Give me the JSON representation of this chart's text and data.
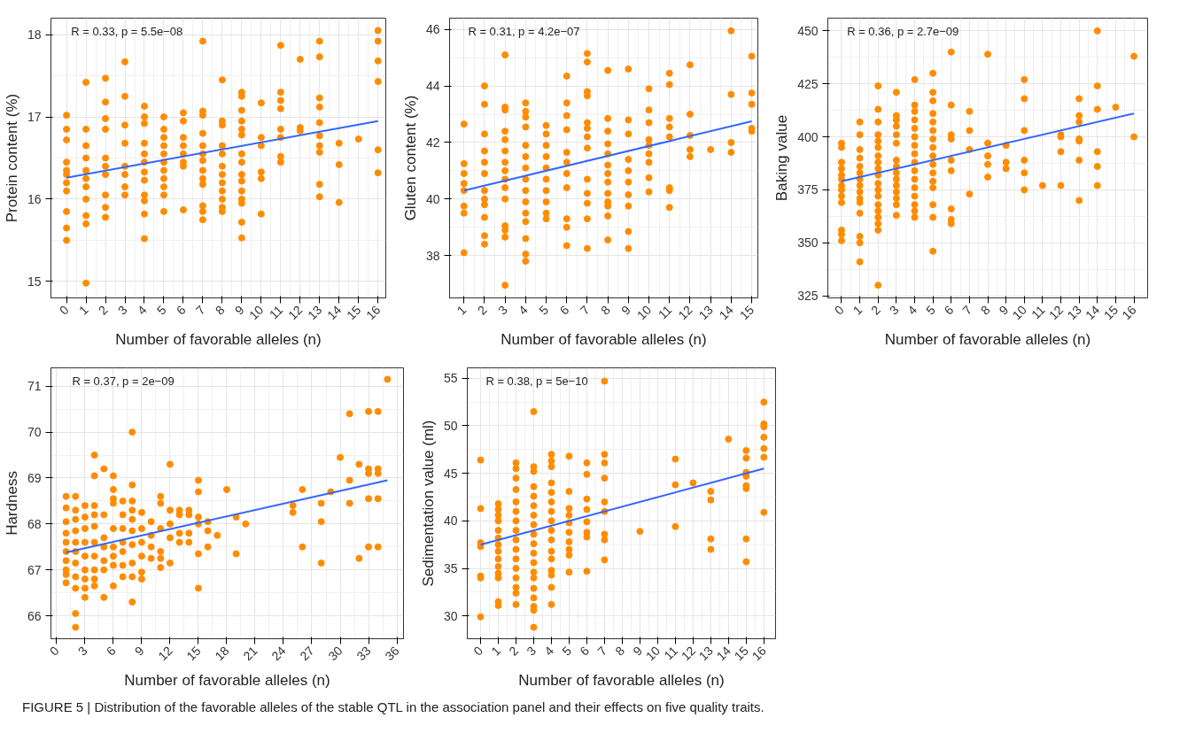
{
  "chart_data": [
    {
      "type": "scatter",
      "xlabel": "Number of favorable alleles (n)",
      "ylabel": "Protein content (%)",
      "xlim": [
        -0.8,
        16.4
      ],
      "ylim": [
        14.8,
        18.2
      ],
      "xticks": [
        0,
        1,
        2,
        3,
        4,
        5,
        6,
        7,
        8,
        9,
        10,
        11,
        12,
        13,
        14,
        15,
        16
      ],
      "yticks": [
        15,
        16,
        17,
        18
      ],
      "grid": true,
      "annotations": [
        "R = 0.33, p = 5.5e−08"
      ],
      "series": [
        {
          "marker": "circle",
          "color": "#ff8c00",
          "x": [
            0,
            0,
            0,
            0,
            0,
            0,
            0,
            0,
            0,
            0,
            0,
            1,
            1,
            1,
            1,
            1,
            1,
            1,
            1,
            1,
            1,
            1,
            2,
            2,
            2,
            2,
            2,
            2,
            2,
            2,
            2,
            2,
            3,
            3,
            3,
            3,
            3,
            3,
            3,
            3,
            4,
            4,
            4,
            4,
            4,
            4,
            4,
            4,
            4,
            4,
            4,
            4,
            5,
            5,
            5,
            5,
            5,
            5,
            5,
            5,
            5,
            5,
            5,
            6,
            6,
            6,
            6,
            6,
            6,
            6,
            6,
            7,
            7,
            7,
            7,
            7,
            7,
            7,
            7,
            7,
            7,
            7,
            7,
            7,
            8,
            8,
            8,
            8,
            8,
            8,
            8,
            8,
            8,
            8,
            8,
            8,
            9,
            9,
            9,
            9,
            9,
            9,
            9,
            9,
            9,
            9,
            9,
            9,
            9,
            9,
            9,
            10,
            10,
            10,
            10,
            10,
            10,
            11,
            11,
            11,
            11,
            11,
            11,
            11,
            11,
            12,
            12,
            12,
            13,
            13,
            13,
            13,
            13,
            13,
            13,
            13,
            13,
            13,
            14,
            14,
            14,
            15,
            16,
            16,
            16,
            16,
            16,
            16
          ],
          "values": [
            17.02,
            16.85,
            16.72,
            16.45,
            16.35,
            16.3,
            16.2,
            16.1,
            15.85,
            15.65,
            15.5,
            17.42,
            16.85,
            16.65,
            16.5,
            16.35,
            16.25,
            16.15,
            16.0,
            15.8,
            15.7,
            14.98,
            17.47,
            17.18,
            16.98,
            16.85,
            16.5,
            16.4,
            16.3,
            16.05,
            15.9,
            15.78,
            17.67,
            17.25,
            16.9,
            16.68,
            16.4,
            16.3,
            16.15,
            16.05,
            17.13,
            17.0,
            16.92,
            16.68,
            16.55,
            16.45,
            16.33,
            16.23,
            16.05,
            15.98,
            15.82,
            15.52,
            17.0,
            16.85,
            16.75,
            16.65,
            16.55,
            16.45,
            16.35,
            16.25,
            16.15,
            16.05,
            15.85,
            17.05,
            16.95,
            16.75,
            16.65,
            16.55,
            16.45,
            16.4,
            15.87,
            17.92,
            17.07,
            17.02,
            16.8,
            16.65,
            16.55,
            16.47,
            16.35,
            16.25,
            16.18,
            15.92,
            15.85,
            15.75,
            17.45,
            16.95,
            16.9,
            16.65,
            16.55,
            16.4,
            16.3,
            16.2,
            16.1,
            16.0,
            15.9,
            15.85,
            17.3,
            17.25,
            17.08,
            16.95,
            16.85,
            16.78,
            16.55,
            16.45,
            16.3,
            16.22,
            16.1,
            16.0,
            15.95,
            15.72,
            15.53,
            17.17,
            16.75,
            16.65,
            16.33,
            16.25,
            15.82,
            17.87,
            17.3,
            17.2,
            17.1,
            16.85,
            16.75,
            16.52,
            16.45,
            17.7,
            16.87,
            16.83,
            17.92,
            17.73,
            17.23,
            17.12,
            16.93,
            16.77,
            16.65,
            16.57,
            16.18,
            16.03,
            16.68,
            16.42,
            15.96,
            16.73,
            18.05,
            17.92,
            17.68,
            17.43,
            16.6,
            16.32
          ]
        },
        {
          "type": "line",
          "color": "#3366ff",
          "x": [
            0,
            16
          ],
          "values": [
            16.26,
            16.95
          ]
        }
      ]
    },
    {
      "type": "scatter",
      "xlabel": "Number of favorable alleles (n)",
      "ylabel": "Gluten content (%)",
      "xlim": [
        0.3,
        15.3
      ],
      "ylim": [
        36.5,
        46.4
      ],
      "xticks": [
        1,
        2,
        3,
        4,
        5,
        6,
        7,
        8,
        9,
        10,
        11,
        12,
        13,
        14,
        15
      ],
      "yticks": [
        38,
        40,
        42,
        44,
        46
      ],
      "grid": true,
      "annotations": [
        "R = 0.31, p = 4.2e−07"
      ],
      "series": [
        {
          "marker": "circle",
          "color": "#ff8c00",
          "x": [
            1,
            1,
            1,
            1,
            1,
            1,
            1,
            1,
            2,
            2,
            2,
            2,
            2,
            2,
            2,
            2,
            2,
            2,
            2,
            2,
            3,
            3,
            3,
            3,
            3,
            3,
            3,
            3,
            3,
            3,
            3,
            3,
            3,
            3,
            3,
            4,
            4,
            4,
            4,
            4,
            4,
            4,
            4,
            4,
            4,
            4,
            4,
            4,
            4,
            4,
            5,
            5,
            5,
            5,
            5,
            5,
            5,
            5,
            5,
            5,
            6,
            6,
            6,
            6,
            6,
            6,
            6,
            6,
            6,
            6,
            6,
            7,
            7,
            7,
            7,
            7,
            7,
            7,
            7,
            7,
            7,
            7,
            7,
            7,
            8,
            8,
            8,
            8,
            8,
            8,
            8,
            8,
            8,
            8,
            8,
            8,
            8,
            9,
            9,
            9,
            9,
            9,
            9,
            9,
            9,
            9,
            9,
            10,
            10,
            10,
            10,
            10,
            10,
            10,
            10,
            10,
            11,
            11,
            11,
            11,
            11,
            11,
            11,
            11,
            12,
            12,
            12,
            12,
            12,
            13,
            14,
            14,
            14,
            14,
            15,
            15,
            15,
            15,
            15
          ],
          "values": [
            42.65,
            41.25,
            40.9,
            40.55,
            40.3,
            39.75,
            39.5,
            38.1,
            44.0,
            43.35,
            42.3,
            41.7,
            41.3,
            40.9,
            40.3,
            40.0,
            39.8,
            39.35,
            38.7,
            38.4,
            45.1,
            43.25,
            43.15,
            42.4,
            42.1,
            41.7,
            41.3,
            41.0,
            40.7,
            40.4,
            40.0,
            39.05,
            38.9,
            38.65,
            36.95,
            43.4,
            43.1,
            42.9,
            42.55,
            41.9,
            41.5,
            41.1,
            40.7,
            40.3,
            39.9,
            39.5,
            39.2,
            38.6,
            38.05,
            37.8,
            42.6,
            42.3,
            41.9,
            41.5,
            41.1,
            40.7,
            40.3,
            39.9,
            39.5,
            39.3,
            44.35,
            43.4,
            42.95,
            42.45,
            41.65,
            41.3,
            40.9,
            40.4,
            39.3,
            39.0,
            38.35,
            45.15,
            44.85,
            43.8,
            43.65,
            42.7,
            42.5,
            42.2,
            41.8,
            40.7,
            40.2,
            39.85,
            39.3,
            38.25,
            44.55,
            42.85,
            42.4,
            41.95,
            41.6,
            41.2,
            40.9,
            40.6,
            40.2,
            39.9,
            39.75,
            39.4,
            38.55,
            44.6,
            42.8,
            42.3,
            41.4,
            41.0,
            40.6,
            40.15,
            39.75,
            38.85,
            38.25,
            43.9,
            43.15,
            42.7,
            42.1,
            41.9,
            41.6,
            41.3,
            40.75,
            40.25,
            44.45,
            44.05,
            42.85,
            42.55,
            42.2,
            40.4,
            40.3,
            39.7,
            44.75,
            43.0,
            42.25,
            41.75,
            41.5,
            41.75,
            45.95,
            43.7,
            42.0,
            41.65,
            45.05,
            43.75,
            43.35,
            42.5,
            42.4
          ]
        },
        {
          "type": "line",
          "color": "#3366ff",
          "x": [
            1,
            15
          ],
          "values": [
            40.3,
            42.75
          ]
        }
      ]
    },
    {
      "type": "scatter",
      "xlabel": "Number of favorable alleles (n)",
      "ylabel": "Baking value",
      "xlim": [
        -0.75,
        16.75
      ],
      "ylim": [
        324,
        456
      ],
      "xticks": [
        0,
        1,
        2,
        3,
        4,
        5,
        6,
        7,
        8,
        9,
        10,
        11,
        12,
        13,
        14,
        15,
        16
      ],
      "yticks": [
        325,
        350,
        375,
        400,
        425,
        450
      ],
      "grid": true,
      "annotations": [
        "R = 0.36, p = 2.7e−09"
      ],
      "series": [
        {
          "marker": "circle",
          "color": "#ff8c00",
          "x": [
            0,
            0,
            0,
            0,
            0,
            0,
            0,
            0,
            0,
            0,
            0,
            0,
            0,
            1,
            1,
            1,
            1,
            1,
            1,
            1,
            1,
            1,
            1,
            1,
            1,
            1,
            1,
            1,
            2,
            2,
            2,
            2,
            2,
            2,
            2,
            2,
            2,
            2,
            2,
            2,
            2,
            2,
            2,
            2,
            2,
            2,
            2,
            3,
            3,
            3,
            3,
            3,
            3,
            3,
            3,
            3,
            3,
            3,
            3,
            3,
            3,
            3,
            4,
            4,
            4,
            4,
            4,
            4,
            4,
            4,
            4,
            4,
            4,
            4,
            4,
            4,
            4,
            4,
            5,
            5,
            5,
            5,
            5,
            5,
            5,
            5,
            5,
            5,
            5,
            5,
            5,
            5,
            5,
            5,
            6,
            6,
            6,
            6,
            6,
            6,
            6,
            6,
            6,
            7,
            7,
            7,
            7,
            8,
            8,
            8,
            8,
            8,
            9,
            9,
            9,
            10,
            10,
            10,
            10,
            10,
            10,
            11,
            12,
            12,
            12,
            12,
            13,
            13,
            13,
            13,
            13,
            13,
            13,
            14,
            14,
            14,
            14,
            14,
            14,
            15,
            16,
            16
          ],
          "values": [
            397,
            395,
            388,
            385,
            382,
            380,
            377,
            375,
            372,
            369,
            356,
            354,
            351,
            407,
            401,
            394,
            390,
            386,
            383,
            380,
            377,
            374,
            371,
            369,
            364,
            353,
            350,
            341,
            424,
            413,
            407,
            401,
            398,
            395,
            391,
            388,
            385,
            382,
            378,
            375,
            372,
            368,
            365,
            362,
            359,
            356,
            330,
            421,
            410,
            408,
            405,
            401,
            397,
            389,
            386,
            383,
            380,
            377,
            374,
            371,
            368,
            363,
            427,
            415,
            412,
            408,
            404,
            400,
            396,
            392,
            388,
            384,
            380,
            376,
            372,
            368,
            365,
            362,
            430,
            421,
            417,
            411,
            407,
            403,
            399,
            395,
            391,
            387,
            383,
            379,
            376,
            368,
            362,
            346,
            440,
            415,
            401,
            399,
            389,
            384,
            366,
            361,
            359,
            412,
            403,
            394,
            373,
            439,
            397,
            391,
            387,
            381,
            396,
            388,
            385,
            427,
            418,
            403,
            389,
            383,
            375,
            377,
            401,
            400,
            393,
            377,
            418,
            410,
            407,
            399,
            398,
            389,
            370,
            450,
            424,
            413,
            393,
            386,
            377,
            414,
            438,
            400
          ]
        },
        {
          "type": "line",
          "color": "#3366ff",
          "x": [
            0,
            16
          ],
          "values": [
            379,
            411
          ]
        }
      ]
    },
    {
      "type": "scatter",
      "xlabel": "Number of favorable alleles (n)",
      "ylabel": "Hardness",
      "xlim": [
        -0.6,
        36.7
      ],
      "ylim": [
        65.5,
        71.4
      ],
      "xticks": [
        0,
        3,
        6,
        9,
        12,
        15,
        18,
        21,
        24,
        27,
        30,
        33,
        36
      ],
      "yticks": [
        66,
        67,
        68,
        69,
        70,
        71
      ],
      "grid": true,
      "annotations": [
        "R = 0.37, p = 2e−09"
      ],
      "series": [
        {
          "marker": "circle",
          "color": "#ff8c00",
          "x": [
            1,
            1,
            1,
            1,
            1,
            1,
            1,
            1,
            1,
            1,
            2,
            2,
            2,
            2,
            2,
            2,
            2,
            2,
            2,
            2,
            2,
            3,
            3,
            3,
            3,
            3,
            3,
            3,
            3,
            3,
            4,
            4,
            4,
            4,
            4,
            4,
            4,
            4,
            4,
            4,
            5,
            5,
            5,
            5,
            5,
            5,
            5,
            6,
            6,
            6,
            6,
            6,
            6,
            6,
            6,
            6,
            7,
            7,
            7,
            7,
            7,
            7,
            7,
            8,
            8,
            8,
            8,
            8,
            8,
            8,
            8,
            8,
            8,
            9,
            9,
            9,
            9,
            9,
            9,
            10,
            10,
            10,
            10,
            11,
            11,
            11,
            11,
            11,
            11,
            12,
            12,
            12,
            12,
            12,
            13,
            13,
            13,
            13,
            14,
            14,
            14,
            14,
            15,
            15,
            15,
            15,
            15,
            15,
            16,
            16,
            16,
            17,
            18,
            19,
            19,
            20,
            25,
            25,
            26,
            26,
            28,
            28,
            28,
            29,
            30,
            31,
            31,
            31,
            32,
            32,
            33,
            33,
            33,
            33,
            33,
            34,
            34,
            34,
            34,
            34,
            35
          ],
          "values": [
            68.6,
            68.35,
            68.05,
            67.8,
            67.6,
            67.4,
            67.2,
            67.0,
            66.9,
            66.72,
            68.6,
            68.3,
            68.1,
            67.85,
            67.6,
            67.4,
            67.15,
            66.85,
            66.6,
            66.05,
            65.75,
            68.4,
            68.15,
            67.9,
            67.6,
            67.3,
            67.0,
            66.8,
            66.6,
            66.4,
            69.5,
            69.05,
            68.4,
            68.2,
            67.95,
            67.6,
            67.3,
            67.0,
            66.8,
            66.65,
            69.2,
            68.2,
            67.7,
            67.5,
            67.2,
            67.0,
            66.4,
            69.05,
            68.75,
            68.55,
            68.45,
            67.9,
            67.5,
            67.3,
            67.1,
            66.65,
            68.5,
            68.2,
            67.9,
            67.6,
            67.4,
            67.1,
            66.85,
            70.0,
            68.85,
            68.5,
            68.3,
            68.1,
            67.85,
            67.55,
            67.15,
            66.85,
            66.3,
            68.25,
            67.9,
            67.6,
            67.3,
            66.95,
            66.8,
            68.05,
            67.75,
            67.5,
            67.25,
            68.6,
            68.45,
            67.9,
            67.4,
            67.25,
            67.05,
            69.3,
            68.3,
            68.0,
            67.7,
            67.15,
            68.3,
            68.2,
            67.8,
            67.6,
            68.3,
            68.2,
            67.8,
            67.6,
            68.95,
            68.7,
            68.15,
            68.0,
            67.35,
            66.6,
            68.05,
            67.85,
            67.5,
            67.75,
            68.75,
            68.15,
            67.35,
            68.0,
            68.4,
            68.25,
            68.75,
            67.5,
            68.45,
            68.05,
            67.15,
            68.7,
            69.45,
            70.4,
            68.95,
            68.45,
            69.3,
            67.25,
            70.45,
            69.2,
            69.1,
            68.55,
            67.5,
            70.45,
            69.2,
            69.1,
            68.55,
            67.5,
            71.15
          ]
        },
        {
          "type": "line",
          "color": "#3366ff",
          "x": [
            1,
            35
          ],
          "values": [
            67.38,
            68.95
          ]
        }
      ]
    },
    {
      "type": "scatter",
      "xlabel": "Number of favorable alleles (n)",
      "ylabel": "Sedimentation value (ml)",
      "xlim": [
        -0.75,
        16.66
      ],
      "ylim": [
        27.6,
        56.1
      ],
      "xticks": [
        0,
        1,
        2,
        3,
        4,
        5,
        6,
        7,
        8,
        9,
        10,
        11,
        12,
        13,
        14,
        15,
        16
      ],
      "yticks": [
        30,
        35,
        40,
        45,
        50,
        55
      ],
      "grid": true,
      "annotations": [
        "R = 0.38, p = 5e−10",
        "FIGURE 5 | Distribution of the favorable alleles of the stable QTL in the association panel and their effects on five quality traits."
      ],
      "series": [
        {
          "marker": "circle",
          "color": "#ff8c00",
          "x": [
            0,
            0,
            0,
            0,
            0,
            0,
            0,
            1,
            1,
            1,
            1,
            1,
            1,
            1,
            1,
            1,
            1,
            1,
            1,
            1,
            1,
            2,
            2,
            2,
            2,
            2,
            2,
            2,
            2,
            2,
            2,
            2,
            2,
            2,
            2,
            2,
            2,
            3,
            3,
            3,
            3,
            3,
            3,
            3,
            3,
            3,
            3,
            3,
            3,
            3,
            3,
            3,
            3,
            3,
            3,
            3,
            4,
            4,
            4,
            4,
            4,
            4,
            4,
            4,
            4,
            4,
            4,
            4,
            4,
            4,
            4,
            4,
            5,
            5,
            5,
            5,
            5,
            5,
            5,
            5,
            5,
            5,
            6,
            6,
            6,
            6,
            6,
            6,
            6,
            6,
            7,
            7,
            7,
            7,
            7,
            7,
            7,
            7,
            7,
            9,
            11,
            11,
            11,
            12,
            13,
            13,
            13,
            13,
            14,
            15,
            15,
            15,
            15,
            15,
            15,
            15,
            15,
            16,
            16,
            16,
            16,
            16,
            16,
            16
          ],
          "values": [
            46.4,
            41.3,
            37.7,
            37.3,
            34.2,
            34.0,
            29.9,
            41.8,
            41.2,
            40.6,
            40.0,
            39.0,
            38.2,
            37.5,
            36.8,
            36.0,
            35.2,
            34.5,
            34.0,
            31.5,
            31.1,
            46.1,
            45.5,
            44.5,
            43.3,
            42.0,
            41.0,
            40.0,
            39.0,
            38.0,
            37.0,
            36.0,
            35.0,
            34.0,
            33.0,
            32.4,
            31.2,
            51.5,
            45.7,
            45.2,
            43.6,
            42.6,
            41.6,
            40.6,
            39.6,
            38.6,
            37.6,
            36.6,
            35.6,
            34.6,
            34.0,
            32.9,
            31.9,
            31.0,
            30.6,
            28.8,
            47.0,
            46.3,
            45.7,
            44.0,
            43.0,
            42.0,
            41.0,
            40.0,
            39.0,
            38.0,
            36.8,
            36.0,
            34.8,
            34.3,
            33.0,
            31.2,
            46.8,
            43.1,
            41.3,
            40.6,
            39.8,
            38.8,
            37.8,
            37.0,
            36.4,
            34.6,
            46.1,
            44.9,
            42.3,
            41.2,
            39.9,
            38.8,
            38.3,
            34.7,
            54.7,
            47.0,
            46.1,
            44.5,
            42.0,
            41.0,
            38.6,
            38.0,
            35.9,
            38.9,
            46.5,
            43.8,
            39.4,
            44.0,
            43.1,
            42.2,
            38.1,
            37.0,
            48.6,
            47.4,
            46.6,
            45.1,
            44.7,
            43.7,
            43.4,
            38.1,
            35.7,
            52.5,
            50.2,
            49.9,
            48.8,
            47.6,
            46.7,
            40.9
          ]
        },
        {
          "type": "line",
          "color": "#3366ff",
          "x": [
            0,
            16
          ],
          "values": [
            37.5,
            45.5
          ]
        }
      ]
    }
  ]
}
